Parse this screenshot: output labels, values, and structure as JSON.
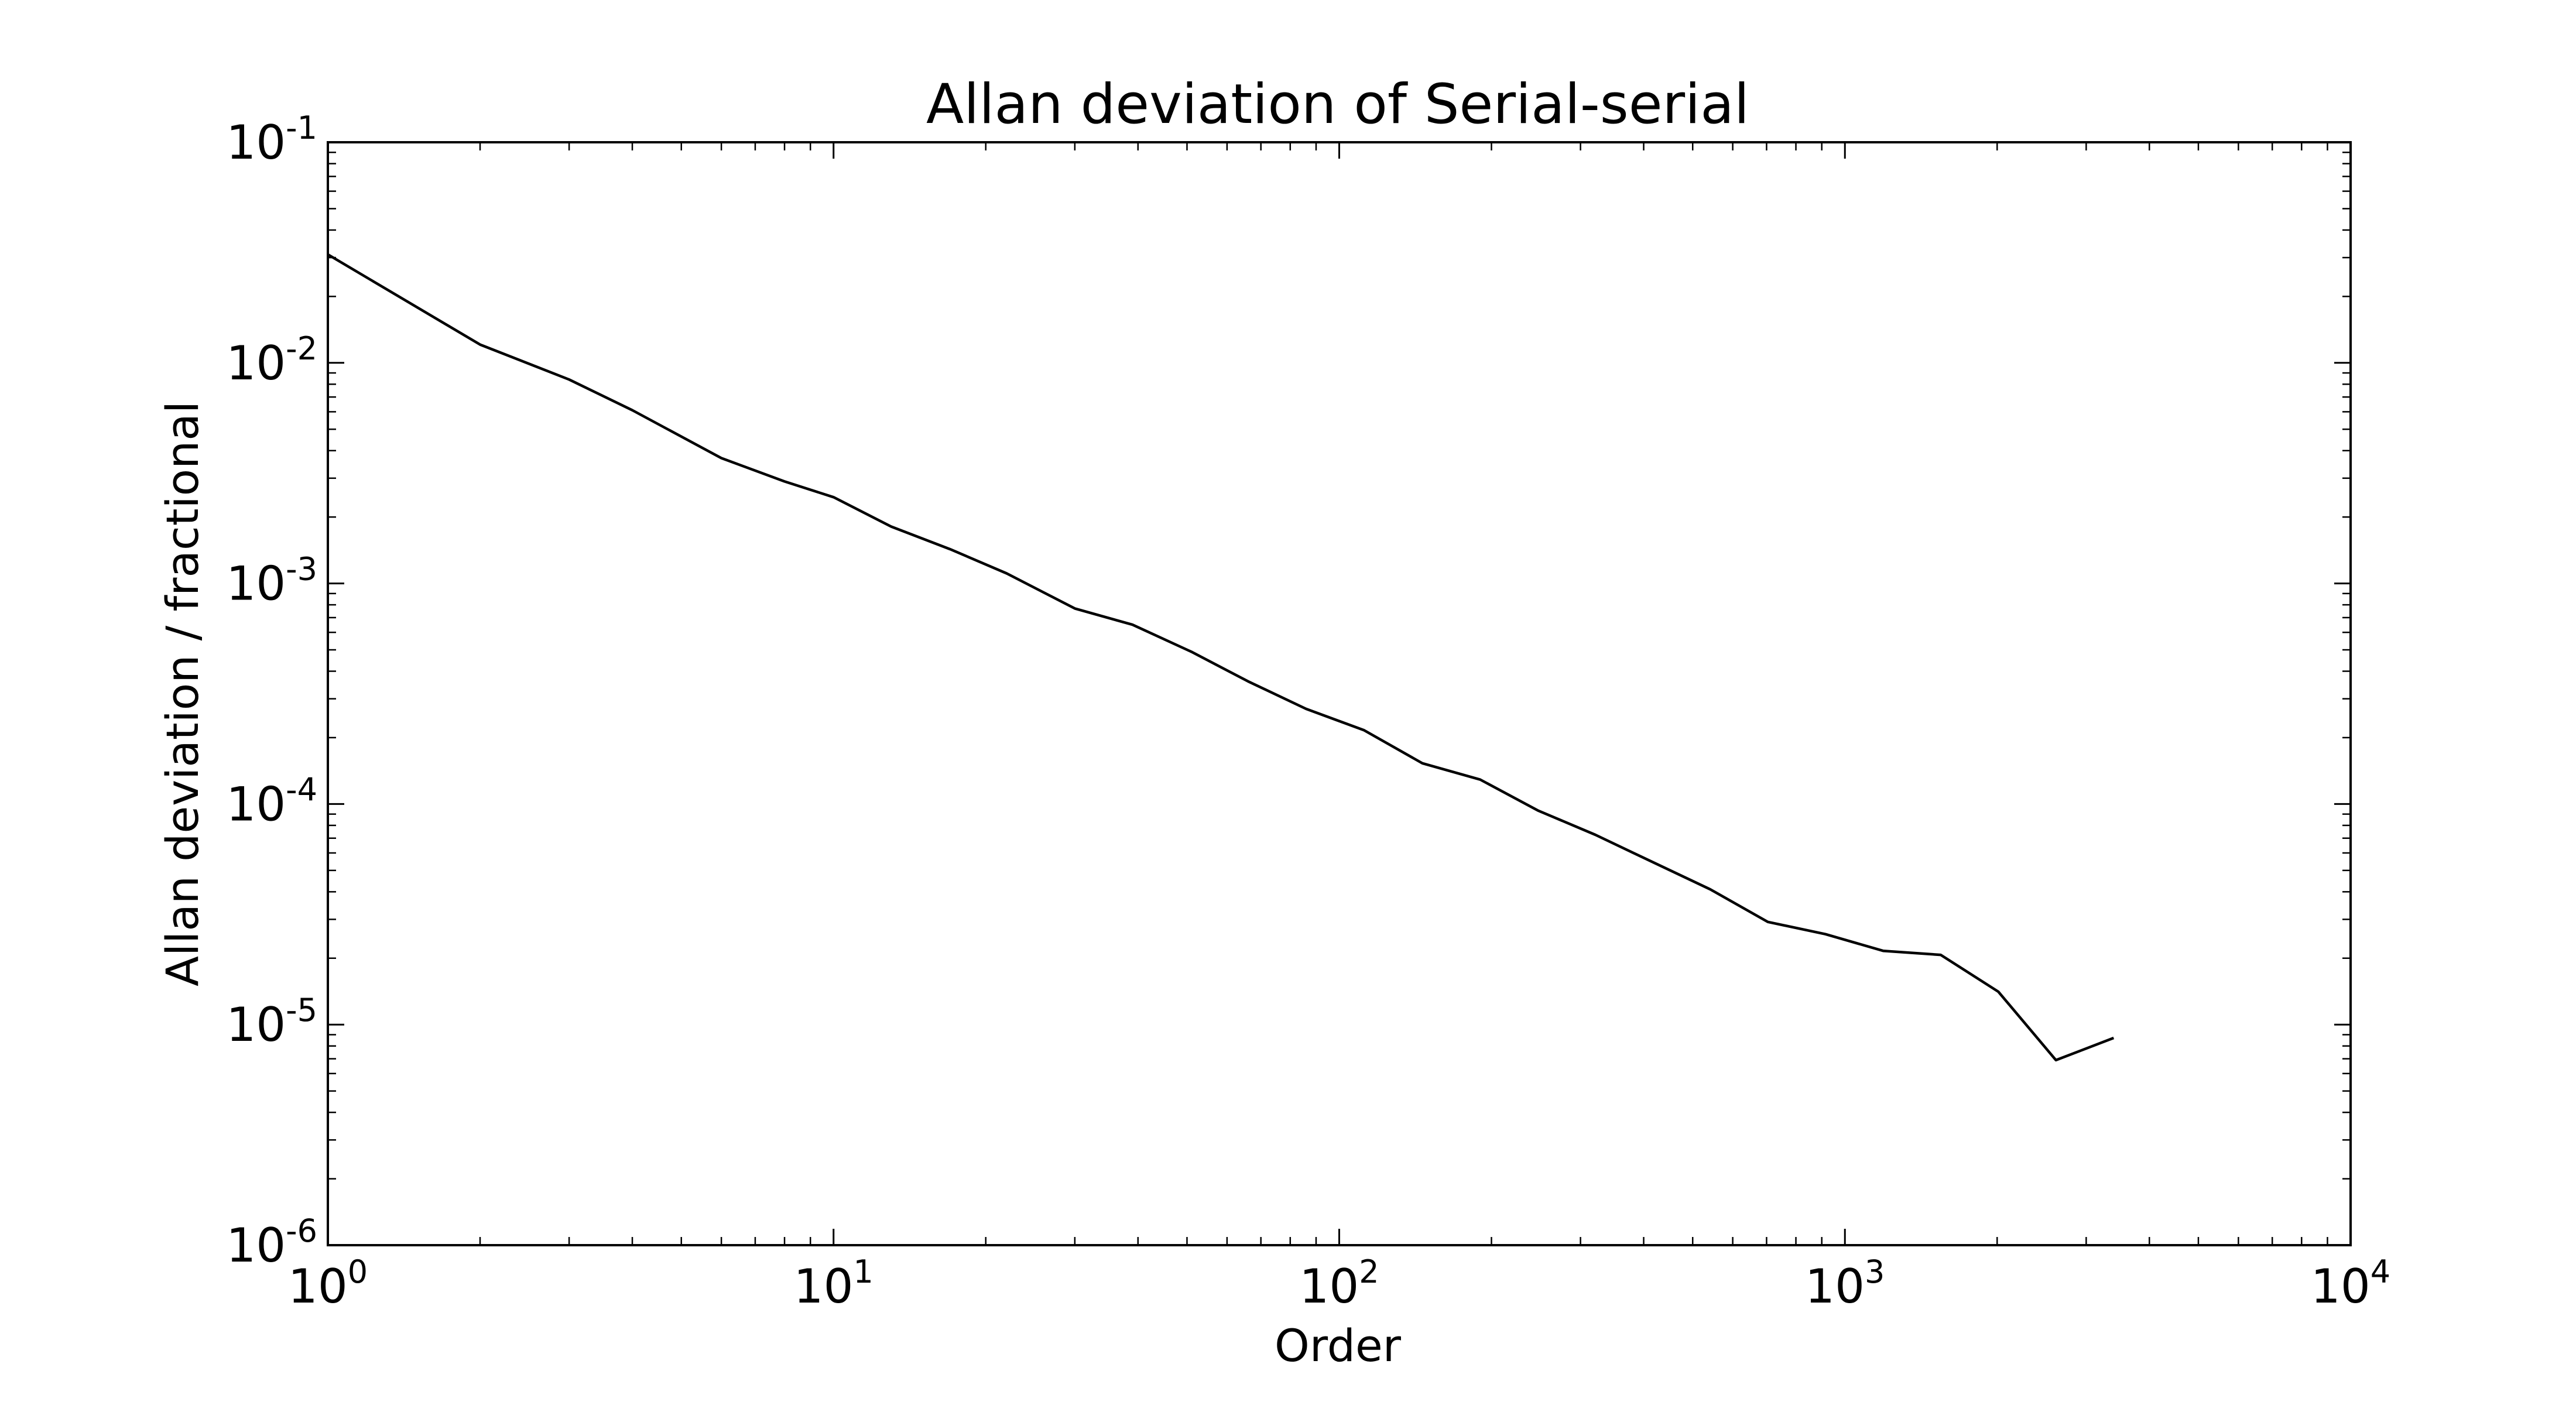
{
  "chart_data": {
    "type": "line",
    "title": "Allan deviation of Serial-serial",
    "xlabel": "Order",
    "ylabel": "Allan deviation / fractional",
    "xscale": "log",
    "yscale": "log",
    "xlim": [
      1,
      10000
    ],
    "ylim": [
      1e-06,
      0.1
    ],
    "grid": false,
    "legend": "none",
    "line_color": "#000000",
    "x_ticks": [
      {
        "value": 1,
        "base": "10",
        "exp": "0"
      },
      {
        "value": 10,
        "base": "10",
        "exp": "1"
      },
      {
        "value": 100,
        "base": "10",
        "exp": "2"
      },
      {
        "value": 1000,
        "base": "10",
        "exp": "3"
      },
      {
        "value": 10000,
        "base": "10",
        "exp": "4"
      }
    ],
    "y_ticks": [
      {
        "value": 0.1,
        "base": "10",
        "exp": "-1"
      },
      {
        "value": 0.01,
        "base": "10",
        "exp": "-2"
      },
      {
        "value": 0.001,
        "base": "10",
        "exp": "-3"
      },
      {
        "value": 0.0001,
        "base": "10",
        "exp": "-4"
      },
      {
        "value": 1e-05,
        "base": "10",
        "exp": "-5"
      },
      {
        "value": 1e-06,
        "base": "10",
        "exp": "-6"
      }
    ],
    "series": [
      {
        "x": [
          1,
          2,
          3,
          4,
          6,
          8,
          10,
          13,
          17,
          22,
          30,
          39,
          51,
          66,
          86,
          112,
          146,
          190,
          247,
          321,
          417,
          542,
          704,
          915,
          1190,
          1547,
          2011,
          2614,
          3400
        ],
        "y": [
          0.031,
          0.0121,
          0.0084,
          0.0061,
          0.0037,
          0.0029,
          0.00246,
          0.00181,
          0.00143,
          0.00111,
          0.00077,
          0.00065,
          0.00049,
          0.00036,
          0.00027,
          0.000216,
          0.000153,
          0.000129,
          9.35e-05,
          7.25e-05,
          5.45e-05,
          4.1e-05,
          2.92e-05,
          2.57e-05,
          2.16e-05,
          2.07e-05,
          1.41e-05,
          6.9e-06,
          8.7e-06
        ]
      }
    ]
  }
}
